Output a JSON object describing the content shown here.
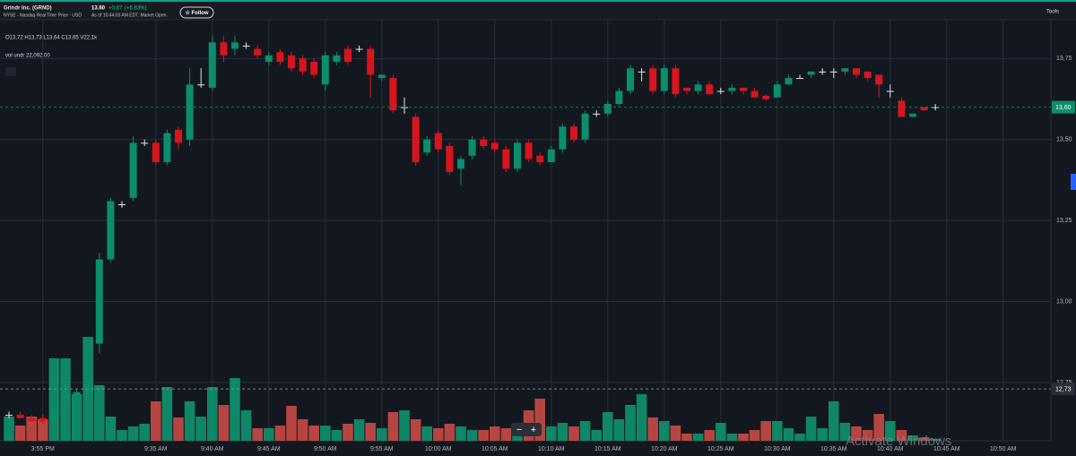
{
  "header": {
    "name": "Grindr Inc. (GRND)",
    "exchange": "NYSE - Nasdaq Real Time Price · USD",
    "price": "13.60",
    "change": "+0.87",
    "change_pct": "(+6.83%)",
    "as_of": "As of 10:44:03 AM EDT. Market Open.",
    "follow": "☆ Follow",
    "tools": "Tools"
  },
  "legend": {
    "ohlc": "O13,72  H13,73  L13,64  C13,65  V22,1k",
    "volume": "vol undr  22,092.00"
  },
  "zoom": {
    "minus": "−",
    "plus": "+"
  },
  "watermark": "Activate Windows",
  "chart_data": {
    "type": "candlestick",
    "categories": [
      null,
      null,
      null,
      "3:55 PM",
      null,
      null,
      null,
      null,
      null,
      null,
      null,
      null,
      null,
      "9:35 AM",
      null,
      null,
      null,
      null,
      "9:40 AM",
      null,
      null,
      null,
      null,
      "9:45 AM",
      null,
      null,
      null,
      null,
      "9:50 AM",
      null,
      null,
      null,
      null,
      "9:55 AM",
      null,
      null,
      null,
      null,
      "10:00 AM",
      null,
      null,
      null,
      null,
      "10:05 AM",
      null,
      null,
      null,
      null,
      "10:10 AM",
      null,
      null,
      null,
      null,
      "10:15 AM",
      null,
      null,
      null,
      null,
      "10:20 AM",
      null,
      null,
      null,
      null,
      "10:25 AM",
      null,
      null,
      null,
      null,
      "10:30 AM",
      null,
      null,
      null,
      null,
      "10:35 AM",
      null,
      null,
      null,
      null,
      "10:40 AM",
      null,
      null,
      null,
      null,
      "10:45 AM",
      null,
      null,
      null,
      null,
      "10:50 AM"
    ],
    "open": [
      12.65,
      12.65,
      12.64,
      12.64,
      12.64,
      12.7,
      12.71,
      12.72,
      12.87,
      13.13,
      13.3,
      13.32,
      13.49,
      13.49,
      13.43,
      13.53,
      13.5,
      13.67,
      13.66,
      13.8,
      13.78,
      13.79,
      13.78,
      13.74,
      13.77,
      13.76,
      13.75,
      13.74,
      13.67,
      13.74,
      13.78,
      13.78,
      13.78,
      13.69,
      13.69,
      13.6,
      13.57,
      13.46,
      13.52,
      13.48,
      13.41,
      13.45,
      13.5,
      13.49,
      13.47,
      13.41,
      13.49,
      13.45,
      13.43,
      13.47,
      13.54,
      13.5,
      13.58,
      13.58,
      13.61,
      13.65,
      13.71,
      13.72,
      13.65,
      13.72,
      13.66,
      13.65,
      13.67,
      13.65,
      13.65,
      13.66,
      13.65,
      13.635,
      13.63,
      13.67,
      13.69,
      13.7,
      13.71,
      13.71,
      13.71,
      13.72,
      13.71,
      13.7,
      13.65,
      13.62,
      13.57,
      13.6,
      13.6,
      null,
      null,
      null,
      null,
      null,
      null
    ],
    "high": [
      12.66,
      12.66,
      12.65,
      12.65,
      12.68,
      12.73,
      12.73,
      12.73,
      13.15,
      13.32,
      13.31,
      13.51,
      13.5,
      13.5,
      13.53,
      13.54,
      13.72,
      13.72,
      13.82,
      13.82,
      13.82,
      13.8,
      13.79,
      13.77,
      13.78,
      13.77,
      13.76,
      13.75,
      13.77,
      13.77,
      13.79,
      13.79,
      13.79,
      13.7,
      13.7,
      13.63,
      13.58,
      13.51,
      13.53,
      13.49,
      13.45,
      13.51,
      13.51,
      13.5,
      13.48,
      13.5,
      13.5,
      13.46,
      13.48,
      13.55,
      13.55,
      13.59,
      13.59,
      13.62,
      13.66,
      13.73,
      13.72,
      13.73,
      13.73,
      13.73,
      13.66,
      13.68,
      13.68,
      13.66,
      13.67,
      13.66,
      13.66,
      13.64,
      13.68,
      13.7,
      13.7,
      13.71,
      13.72,
      13.72,
      13.72,
      13.72,
      13.71,
      13.7,
      13.67,
      13.63,
      13.58,
      13.6,
      13.61,
      null,
      null,
      null,
      null,
      null,
      null
    ],
    "low": [
      12.64,
      12.64,
      12.63,
      12.62,
      12.63,
      12.69,
      12.7,
      12.71,
      12.84,
      13.12,
      13.29,
      13.31,
      13.48,
      13.42,
      13.42,
      13.47,
      13.48,
      13.66,
      13.65,
      13.74,
      13.76,
      13.78,
      13.75,
      13.73,
      13.73,
      13.71,
      13.7,
      13.69,
      13.65,
      13.73,
      13.73,
      13.77,
      13.63,
      13.68,
      13.58,
      13.58,
      13.42,
      13.45,
      13.46,
      13.39,
      13.36,
      13.44,
      13.47,
      13.46,
      13.4,
      13.4,
      13.43,
      13.42,
      13.43,
      13.46,
      13.49,
      13.49,
      13.57,
      13.57,
      13.6,
      13.64,
      13.68,
      13.64,
      13.64,
      13.63,
      13.64,
      13.64,
      13.64,
      13.64,
      13.64,
      13.64,
      13.63,
      13.62,
      13.63,
      13.67,
      13.69,
      13.69,
      13.7,
      13.69,
      13.7,
      13.69,
      13.68,
      13.63,
      13.63,
      13.57,
      13.57,
      13.59,
      13.59,
      null,
      null,
      null,
      null,
      null,
      null
    ],
    "close": [
      12.65,
      12.64,
      12.63,
      12.63,
      12.67,
      12.71,
      12.72,
      12.73,
      13.13,
      13.31,
      13.3,
      13.49,
      13.49,
      13.43,
      13.52,
      13.49,
      13.67,
      13.67,
      13.8,
      13.76,
      13.8,
      13.79,
      13.76,
      13.76,
      13.74,
      13.72,
      13.71,
      13.7,
      13.76,
      13.76,
      13.74,
      13.78,
      13.7,
      13.7,
      13.59,
      13.6,
      13.43,
      13.5,
      13.47,
      13.4,
      13.44,
      13.5,
      13.48,
      13.47,
      13.41,
      13.49,
      13.44,
      13.43,
      13.47,
      13.54,
      13.5,
      13.58,
      13.58,
      13.61,
      13.65,
      13.72,
      13.71,
      13.65,
      13.72,
      13.64,
      13.65,
      13.67,
      13.64,
      13.65,
      13.66,
      13.65,
      13.63,
      13.625,
      13.67,
      13.69,
      13.69,
      13.71,
      13.71,
      13.71,
      13.72,
      13.7,
      13.69,
      13.67,
      13.65,
      13.57,
      13.58,
      13.59,
      13.6,
      null,
      null,
      null,
      null,
      null,
      null
    ],
    "volume": [
      27000,
      17000,
      27000,
      24000,
      92000,
      92000,
      52000,
      116000,
      62000,
      27000,
      12000,
      16000,
      19000,
      44000,
      60000,
      26000,
      44000,
      27000,
      60000,
      40000,
      70000,
      34000,
      14000,
      14000,
      17000,
      39000,
      24000,
      17000,
      17000,
      12000,
      19000,
      24000,
      20000,
      14000,
      32000,
      34000,
      24000,
      16000,
      14000,
      19000,
      16000,
      12000,
      12000,
      16000,
      14000,
      17000,
      34000,
      47000,
      16000,
      20000,
      16000,
      22000,
      12000,
      32000,
      24000,
      40000,
      52000,
      26000,
      22000,
      17000,
      8000,
      8000,
      12000,
      20000,
      8000,
      8000,
      12000,
      22000,
      22000,
      14000,
      8000,
      27000,
      14000,
      44000,
      20000,
      16000,
      12000,
      30000,
      22000,
      12000,
      6000,
      4000,
      2000,
      null,
      null,
      null,
      null,
      null,
      null
    ],
    "ylim": [
      12.57,
      13.87
    ],
    "yticks": [
      {
        "value": 12.75,
        "label": "12,75"
      },
      {
        "value": 13.0,
        "label": "13,00"
      },
      {
        "value": 13.25,
        "label": "13,25"
      },
      {
        "value": 13.5,
        "label": "13,50"
      },
      {
        "value": 13.75,
        "label": "13,75"
      }
    ],
    "volume_lim": [
      0,
      125000
    ],
    "last_price": {
      "value": 13.6,
      "label": "13,60"
    },
    "prev_close": {
      "value": 12.73,
      "label": "12,73"
    },
    "up_color": "#0b8e6b",
    "down_color": "#d8151c",
    "volume_up_color": "#10936e",
    "volume_down_color": "#c94a45",
    "grid": true
  }
}
